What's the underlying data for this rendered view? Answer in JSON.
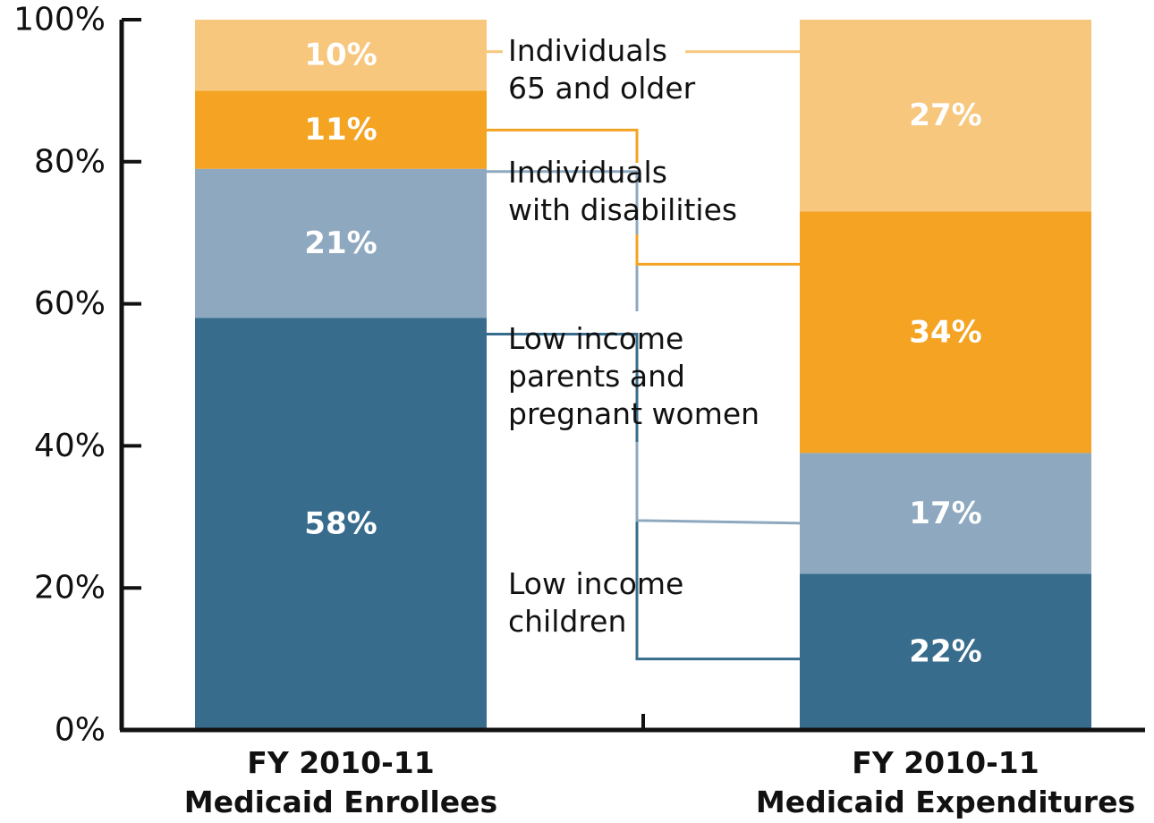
{
  "chart_data": {
    "type": "bar",
    "stacked": true,
    "categories": [
      [
        "FY 2010-11",
        "Medicaid Enrollees"
      ],
      [
        "FY 2010-11",
        "Medicaid Expenditures"
      ]
    ],
    "y_ticks": [
      "0%",
      "20%",
      "40%",
      "60%",
      "80%",
      "100%"
    ],
    "ylim": [
      0,
      100
    ],
    "grid": false,
    "series": [
      {
        "name": "Low income children",
        "label_lines": [
          "Low income",
          "children"
        ],
        "values": [
          58,
          22
        ],
        "labels": [
          "58%",
          "22%"
        ],
        "color": "#386c8d"
      },
      {
        "name": "Low income parents and pregnant women",
        "label_lines": [
          "Low income",
          "parents and",
          "pregnant women"
        ],
        "values": [
          21,
          17
        ],
        "labels": [
          "21%",
          "17%"
        ],
        "color": "#8da8bf"
      },
      {
        "name": "Individuals with disabilities",
        "label_lines": [
          "Individuals",
          "with disabilities"
        ],
        "values": [
          11,
          34
        ],
        "labels": [
          "11%",
          "34%"
        ],
        "color": "#f4a322"
      },
      {
        "name": "Individuals 65 and older",
        "label_lines": [
          "Individuals",
          "65 and older"
        ],
        "values": [
          10,
          27
        ],
        "labels": [
          "10%",
          "27%"
        ],
        "color": "#f7c77e"
      }
    ]
  }
}
